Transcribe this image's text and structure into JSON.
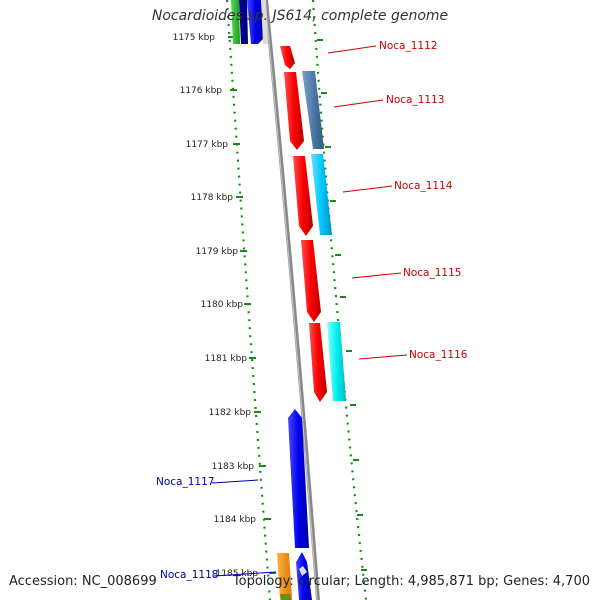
{
  "title": "Nocardioides sp. JS614, complete genome",
  "footer": {
    "accession": "Accession: NC_008699",
    "summary": "Topology: circular; Length: 4,985,871 bp; Genes: 4,700"
  },
  "ruler_ticks": [
    "1175 kbp",
    "1176 kbp",
    "1177 kbp",
    "1178 kbp",
    "1179 kbp",
    "1180 kbp",
    "1181 kbp",
    "1182 kbp",
    "1183 kbp",
    "1184 kbp",
    "1185 kbp"
  ],
  "gene_labels": [
    {
      "name": "Noca_1112",
      "color": "#cc0000"
    },
    {
      "name": "Noca_1113",
      "color": "#cc0000"
    },
    {
      "name": "Noca_1114",
      "color": "#cc0000"
    },
    {
      "name": "Noca_1115",
      "color": "#cc0000"
    },
    {
      "name": "Noca_1116",
      "color": "#cc0000"
    },
    {
      "name": "Noca_1117",
      "color": "#0000aa"
    },
    {
      "name": "Noca_1118",
      "color": "#0000aa"
    }
  ],
  "colors": {
    "forward_cds": "#ff0000",
    "reverse_cds": "#0000ee",
    "steel_feature": "#4f7aa8",
    "cyan_feature": "#00c8ff",
    "bright_cyan_feature": "#00f0f0",
    "backbone": "#888888",
    "ruler_dots": "#1a8a1a"
  }
}
